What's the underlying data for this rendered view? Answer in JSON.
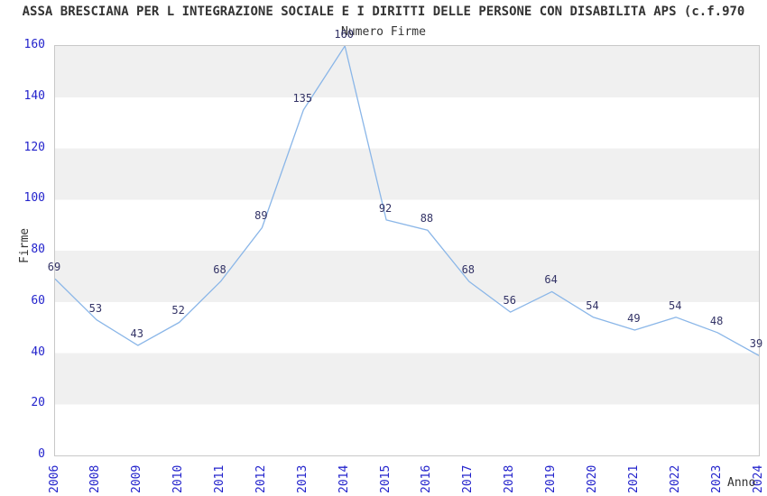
{
  "header": {
    "title": "ASSA BRESCIANA PER L INTEGRAZIONE SOCIALE E I DIRITTI DELLE PERSONE CON DISABILITA APS (c.f.970"
  },
  "chart_data": {
    "type": "line",
    "title": "Numero Firme",
    "xlabel": "Anno",
    "ylabel": "Firme",
    "categories": [
      "2006",
      "2008",
      "2009",
      "2010",
      "2011",
      "2012",
      "2013",
      "2014",
      "2015",
      "2016",
      "2017",
      "2018",
      "2019",
      "2020",
      "2021",
      "2022",
      "2023",
      "2024"
    ],
    "values": [
      69,
      53,
      43,
      52,
      68,
      89,
      135,
      160,
      92,
      88,
      68,
      56,
      64,
      54,
      49,
      54,
      48,
      39
    ],
    "ylim": [
      0,
      160
    ],
    "yticks": [
      0,
      20,
      40,
      60,
      80,
      100,
      120,
      140,
      160
    ],
    "grid": "alternating-horizontal-bands",
    "legend_position": "none",
    "colors": {
      "line": "#8ab6e8",
      "tick_labels": "#2323cc",
      "data_labels": "#333366",
      "band_gray": "#f0f0f0",
      "plot_border": "#c8c8c8",
      "title_text": "#333333"
    }
  }
}
